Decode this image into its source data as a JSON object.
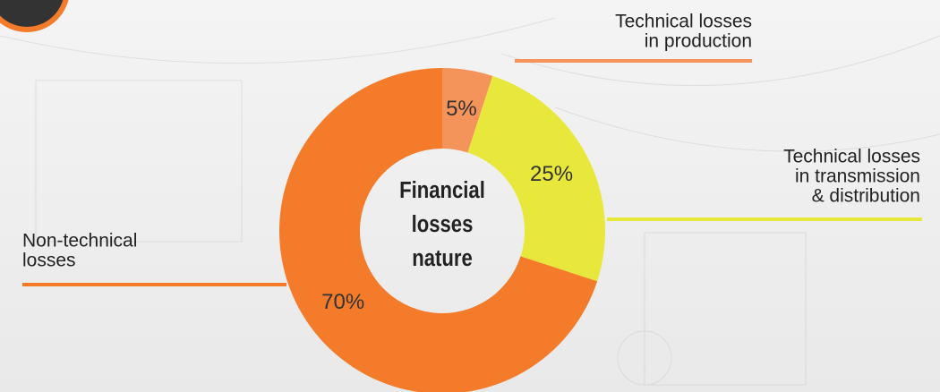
{
  "chart_data": {
    "type": "pie",
    "center_label": [
      "Financial",
      "losses",
      "nature"
    ],
    "categories": [
      [
        "Technical losses",
        "in production"
      ],
      [
        "Technical losses",
        "in transmission",
        "& distribution"
      ],
      [
        "Non-technical",
        "losses"
      ]
    ],
    "values": [
      5,
      25,
      70
    ],
    "value_labels": [
      "5%",
      "25%",
      "70%"
    ],
    "colors": [
      "#f4935a",
      "#e8e83c",
      "#f47b2a"
    ]
  }
}
